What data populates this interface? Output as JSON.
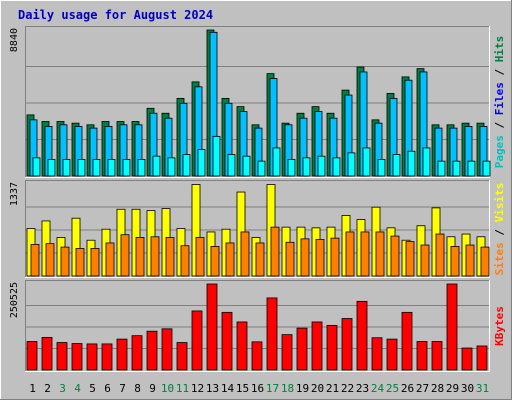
{
  "title": "Daily usage for August 2024",
  "colors": {
    "hits": "#008040",
    "files": "#00c0ff",
    "pages": "#00ffff",
    "visits": "#ffff00",
    "sites": "#ff8000",
    "kbytes": "#ff0000",
    "title_text": "#0000c0",
    "weekend_text": "#008040",
    "weekday_text": "#000000",
    "panel_bg": "#c0c0c0"
  },
  "right_labels": {
    "hits_files_pages": [
      {
        "text": "Pages",
        "color": "#00c0c0"
      },
      {
        "text": " / ",
        "color": "#000000"
      },
      {
        "text": "Files",
        "color": "#0000ff"
      },
      {
        "text": " / ",
        "color": "#000000"
      },
      {
        "text": "Hits",
        "color": "#008040"
      }
    ],
    "sites_visits": [
      {
        "text": "Sites",
        "color": "#ff8000"
      },
      {
        "text": " / ",
        "color": "#000000"
      },
      {
        "text": "Visits",
        "color": "#ffff00"
      }
    ],
    "kbytes": [
      {
        "text": "KBytes",
        "color": "#ff0000"
      }
    ]
  },
  "chart_data": {
    "type": "bar",
    "title": "Daily usage for August 2024",
    "categories": [
      "1",
      "2",
      "3",
      "4",
      "5",
      "6",
      "7",
      "8",
      "9",
      "10",
      "11",
      "12",
      "13",
      "14",
      "15",
      "16",
      "17",
      "18",
      "19",
      "20",
      "21",
      "22",
      "23",
      "24",
      "25",
      "26",
      "27",
      "28",
      "29",
      "30",
      "31"
    ],
    "weekend_days": [
      "3",
      "4",
      "10",
      "11",
      "17",
      "18",
      "24",
      "25",
      "31"
    ],
    "panels": [
      {
        "id": "hits_files_pages",
        "max_label": "8840",
        "ymax": 8840,
        "series": [
          {
            "name": "Hits",
            "values": [
              3700,
              3300,
              3300,
              3200,
              3100,
              3300,
              3300,
              3300,
              4100,
              3800,
              4700,
              5700,
              8840,
              4700,
              4200,
              3100,
              6200,
              3200,
              3800,
              4200,
              3800,
              5200,
              6600,
              3400,
              5000,
              6000,
              6500,
              3100,
              3100,
              3200,
              3200
            ]
          },
          {
            "name": "Files",
            "values": [
              3400,
              3000,
              3100,
              3000,
              2900,
              3000,
              3100,
              3100,
              3800,
              3500,
              4400,
              5400,
              8700,
              4400,
              3900,
              2900,
              5900,
              3100,
              3500,
              3900,
              3500,
              4900,
              6300,
              3200,
              4700,
              5800,
              6300,
              2900,
              2900,
              3000,
              3000
            ]
          },
          {
            "name": "Pages",
            "values": [
              1100,
              1000,
              1000,
              1000,
              1000,
              1000,
              1000,
              1000,
              1200,
              1100,
              1300,
              1600,
              2400,
              1300,
              1200,
              900,
              1700,
              1000,
              1100,
              1200,
              1100,
              1400,
              1700,
              1000,
              1300,
              1500,
              1700,
              900,
              900,
              900,
              900
            ]
          }
        ]
      },
      {
        "id": "sites_visits",
        "max_label": "1337",
        "ymax": 1337,
        "series": [
          {
            "name": "Visits",
            "values": [
              690,
              800,
              560,
              840,
              520,
              680,
              970,
              970,
              950,
              980,
              690,
              1330,
              640,
              680,
              1220,
              560,
              1330,
              710,
              710,
              700,
              710,
              880,
              820,
              1000,
              700,
              520,
              730,
              990,
              570,
              610,
              570
            ]
          },
          {
            "name": "Sites",
            "values": [
              460,
              470,
              420,
              400,
              400,
              480,
              600,
              560,
              570,
              560,
              440,
              560,
              430,
              480,
              640,
              480,
              710,
              490,
              540,
              530,
              550,
              640,
              640,
              640,
              580,
              500,
              450,
              610,
              430,
              450,
              420
            ]
          }
        ]
      },
      {
        "id": "kbytes",
        "max_label": "250525",
        "ymax": 250525,
        "series": [
          {
            "name": "KBytes",
            "values": [
              83000,
              95000,
              80000,
              77000,
              76000,
              76000,
              90000,
              100000,
              113000,
              120000,
              80000,
              172000,
              250525,
              168000,
              140000,
              82000,
              210000,
              103000,
              122000,
              140000,
              130000,
              150000,
              200000,
              94000,
              90000,
              168000,
              83000,
              83000,
              250525,
              64000,
              70000
            ]
          }
        ]
      }
    ]
  }
}
